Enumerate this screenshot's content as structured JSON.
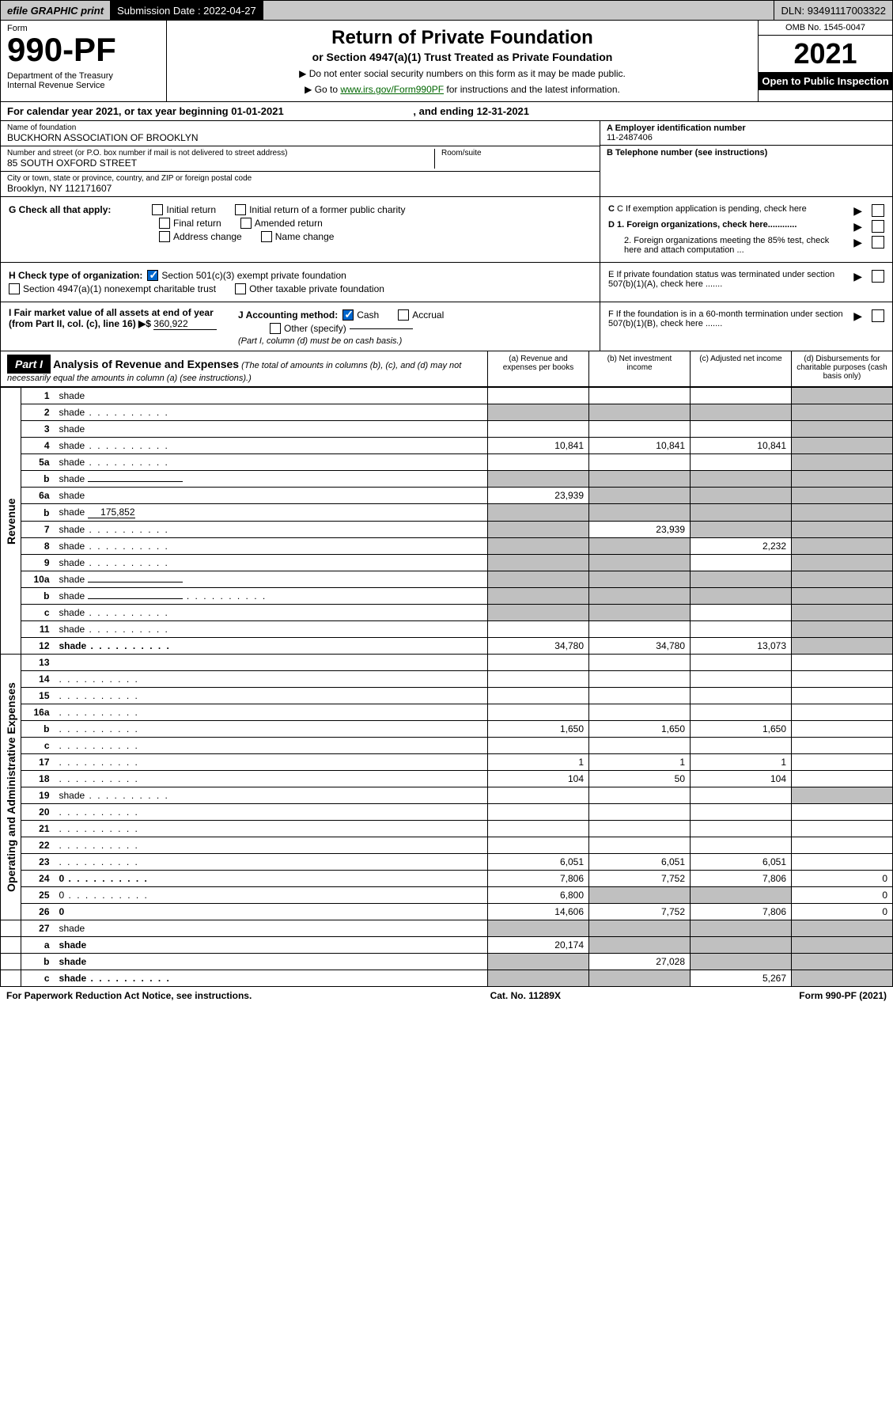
{
  "topbar": {
    "efile": "efile GRAPHIC print",
    "submission_label": "Submission Date : 2022-04-27",
    "dln_label": "DLN: 93491117003322"
  },
  "header": {
    "form_label": "Form",
    "form_number": "990-PF",
    "dept1": "Department of the Treasury",
    "dept2": "Internal Revenue Service",
    "title": "Return of Private Foundation",
    "subtitle": "or Section 4947(a)(1) Trust Treated as Private Foundation",
    "note1": "▶ Do not enter social security numbers on this form as it may be made public.",
    "note2_pre": "▶ Go to ",
    "note2_link": "www.irs.gov/Form990PF",
    "note2_post": " for instructions and the latest information.",
    "omb": "OMB No. 1545-0047",
    "year": "2021",
    "open": "Open to Public Inspection"
  },
  "period": {
    "text_pre": "For calendar year 2021, or tax year beginning 01-01-2021",
    "text_mid": ", and ending 12-31-2021"
  },
  "ident": {
    "name_label": "Name of foundation",
    "name_value": "BUCKHORN ASSOCIATION OF BROOKLYN",
    "street_label": "Number and street (or P.O. box number if mail is not delivered to street address)",
    "street_value": "85 SOUTH OXFORD STREET",
    "suite_label": "Room/suite",
    "city_label": "City or town, state or province, country, and ZIP or foreign postal code",
    "city_value": "Brooklyn, NY  112171607",
    "ein_label": "A Employer identification number",
    "ein_value": "11-2487406",
    "phone_label": "B Telephone number (see instructions)",
    "c_label": "C If exemption application is pending, check here",
    "d1_label": "D 1. Foreign organizations, check here............",
    "d2_label": "2. Foreign organizations meeting the 85% test, check here and attach computation ...",
    "e_label": "E  If private foundation status was terminated under section 507(b)(1)(A), check here .......",
    "f_label": "F  If the foundation is in a 60-month termination under section 507(b)(1)(B), check here ......."
  },
  "checks": {
    "g_label": "G Check all that apply:",
    "g_items": [
      "Initial return",
      "Initial return of a former public charity",
      "Final return",
      "Amended return",
      "Address change",
      "Name change"
    ],
    "h_label": "H Check type of organization:",
    "h_501c3": "Section 501(c)(3) exempt private foundation",
    "h_4947": "Section 4947(a)(1) nonexempt charitable trust",
    "h_other": "Other taxable private foundation",
    "i_label": "I Fair market value of all assets at end of year (from Part II, col. (c), line 16) ▶$",
    "i_value": "360,922",
    "j_label": "J Accounting method:",
    "j_cash": "Cash",
    "j_accrual": "Accrual",
    "j_other": "Other (specify)",
    "j_note": "(Part I, column (d) must be on cash basis.)"
  },
  "part1": {
    "label": "Part I",
    "title": "Analysis of Revenue and Expenses",
    "subtitle": "(The total of amounts in columns (b), (c), and (d) may not necessarily equal the amounts in column (a) (see instructions).)",
    "col_a": "(a)   Revenue and expenses per books",
    "col_b": "(b)   Net investment income",
    "col_c": "(c)   Adjusted net income",
    "col_d": "(d)   Disbursements for charitable purposes (cash basis only)"
  },
  "sections": {
    "revenue": "Revenue",
    "expenses": "Operating and Administrative Expenses"
  },
  "rows": [
    {
      "n": "1",
      "d": "shade",
      "a": "",
      "b": "",
      "c": ""
    },
    {
      "n": "2",
      "d": "shade",
      "a": "shade",
      "b": "shade",
      "c": "shade",
      "dots": true
    },
    {
      "n": "3",
      "d": "shade",
      "a": "",
      "b": "",
      "c": ""
    },
    {
      "n": "4",
      "d": "shade",
      "a": "10,841",
      "b": "10,841",
      "c": "10,841",
      "dots": true
    },
    {
      "n": "5a",
      "d": "shade",
      "a": "",
      "b": "",
      "c": "",
      "dots": true
    },
    {
      "n": "b",
      "d": "shade",
      "a": "shade",
      "b": "shade",
      "c": "shade",
      "inline": true
    },
    {
      "n": "6a",
      "d": "shade",
      "a": "23,939",
      "b": "shade",
      "c": "shade"
    },
    {
      "n": "b",
      "d": "shade",
      "a": "shade",
      "b": "shade",
      "c": "shade",
      "inline_val": "175,852"
    },
    {
      "n": "7",
      "d": "shade",
      "a": "shade",
      "b": "23,939",
      "c": "shade",
      "dots": true
    },
    {
      "n": "8",
      "d": "shade",
      "a": "shade",
      "b": "shade",
      "c": "2,232",
      "dots": true
    },
    {
      "n": "9",
      "d": "shade",
      "a": "shade",
      "b": "shade",
      "c": "",
      "dots": true
    },
    {
      "n": "10a",
      "d": "shade",
      "a": "shade",
      "b": "shade",
      "c": "shade",
      "inline": true
    },
    {
      "n": "b",
      "d": "shade",
      "a": "shade",
      "b": "shade",
      "c": "shade",
      "inline": true,
      "dots": true
    },
    {
      "n": "c",
      "d": "shade",
      "a": "shade",
      "b": "shade",
      "c": "",
      "dots": true
    },
    {
      "n": "11",
      "d": "shade",
      "a": "",
      "b": "",
      "c": "",
      "dots": true
    },
    {
      "n": "12",
      "d": "shade",
      "a": "34,780",
      "b": "34,780",
      "c": "13,073",
      "bold": true,
      "dots": true
    }
  ],
  "exp_rows": [
    {
      "n": "13",
      "d": "",
      "a": "",
      "b": "",
      "c": ""
    },
    {
      "n": "14",
      "d": "",
      "a": "",
      "b": "",
      "c": "",
      "dots": true
    },
    {
      "n": "15",
      "d": "",
      "a": "",
      "b": "",
      "c": "",
      "dots": true
    },
    {
      "n": "16a",
      "d": "",
      "a": "",
      "b": "",
      "c": "",
      "dots": true
    },
    {
      "n": "b",
      "d": "",
      "a": "1,650",
      "b": "1,650",
      "c": "1,650",
      "dots": true
    },
    {
      "n": "c",
      "d": "",
      "a": "",
      "b": "",
      "c": "",
      "dots": true
    },
    {
      "n": "17",
      "d": "",
      "a": "1",
      "b": "1",
      "c": "1",
      "dots": true
    },
    {
      "n": "18",
      "d": "",
      "a": "104",
      "b": "50",
      "c": "104",
      "dots": true
    },
    {
      "n": "19",
      "d": "shade",
      "a": "",
      "b": "",
      "c": "",
      "dots": true
    },
    {
      "n": "20",
      "d": "",
      "a": "",
      "b": "",
      "c": "",
      "dots": true
    },
    {
      "n": "21",
      "d": "",
      "a": "",
      "b": "",
      "c": "",
      "dots": true
    },
    {
      "n": "22",
      "d": "",
      "a": "",
      "b": "",
      "c": "",
      "dots": true
    },
    {
      "n": "23",
      "d": "",
      "a": "6,051",
      "b": "6,051",
      "c": "6,051",
      "dots": true
    },
    {
      "n": "24",
      "d": "0",
      "a": "7,806",
      "b": "7,752",
      "c": "7,806",
      "bold": true,
      "dots": true
    },
    {
      "n": "25",
      "d": "0",
      "a": "6,800",
      "b": "shade",
      "c": "shade",
      "dots": true
    },
    {
      "n": "26",
      "d": "0",
      "a": "14,606",
      "b": "7,752",
      "c": "7,806",
      "bold": true
    }
  ],
  "bottom_rows": [
    {
      "n": "27",
      "d": "shade",
      "a": "shade",
      "b": "shade",
      "c": "shade"
    },
    {
      "n": "a",
      "d": "shade",
      "a": "20,174",
      "b": "shade",
      "c": "shade",
      "bold": true
    },
    {
      "n": "b",
      "d": "shade",
      "a": "shade",
      "b": "27,028",
      "c": "shade",
      "bold": true
    },
    {
      "n": "c",
      "d": "shade",
      "a": "shade",
      "b": "shade",
      "c": "5,267",
      "bold": true,
      "dots": true
    }
  ],
  "footer": {
    "left": "For Paperwork Reduction Act Notice, see instructions.",
    "mid": "Cat. No. 11289X",
    "right": "Form 990-PF (2021)"
  }
}
